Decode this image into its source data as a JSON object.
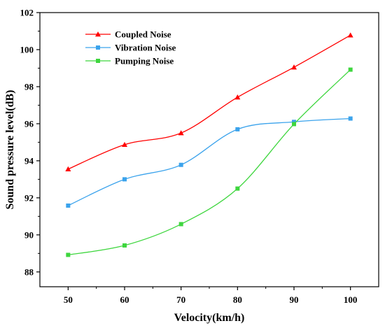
{
  "chart_data": {
    "type": "line",
    "xlabel": "Velocity(km/h)",
    "ylabel": "Sound pressure level(dB)",
    "x": [
      50,
      60,
      70,
      80,
      90,
      100
    ],
    "xlim": [
      45,
      105
    ],
    "ylim": [
      87.2,
      102
    ],
    "xticks": [
      50,
      60,
      70,
      80,
      90,
      100
    ],
    "yticks": [
      88,
      90,
      92,
      94,
      96,
      98,
      100,
      102
    ],
    "grid": false,
    "legend_position": "top-left",
    "series": [
      {
        "name": "Coupled Noise",
        "color": "#ff0000",
        "marker": "triangle",
        "values": [
          93.55,
          94.87,
          95.5,
          97.43,
          99.05,
          100.78
        ]
      },
      {
        "name": "Vibration Noise",
        "color": "#3ba3ec",
        "marker": "square",
        "values": [
          91.58,
          93.0,
          93.78,
          95.7,
          96.1,
          96.28
        ]
      },
      {
        "name": "Pumping Noise",
        "color": "#3ed63e",
        "marker": "square",
        "values": [
          88.92,
          89.43,
          90.58,
          92.5,
          95.98,
          98.92
        ]
      }
    ]
  }
}
